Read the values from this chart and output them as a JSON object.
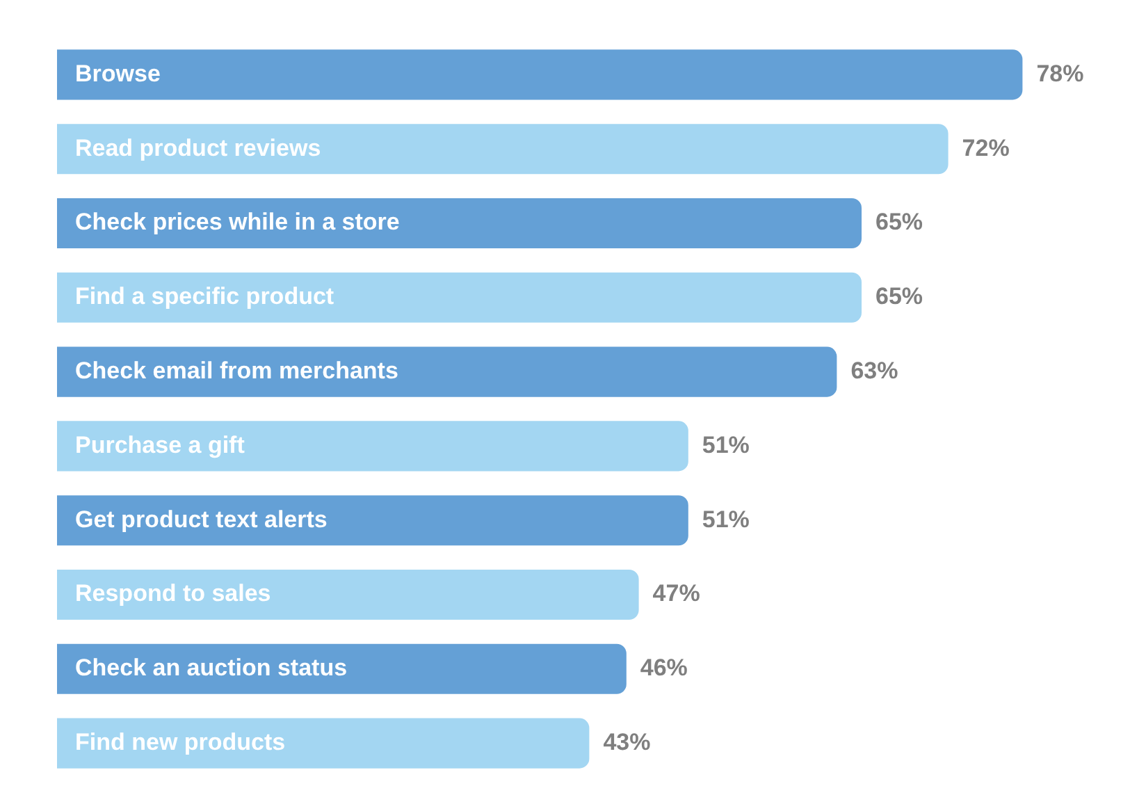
{
  "chart_data": {
    "type": "bar",
    "orientation": "horizontal",
    "categories": [
      "Browse",
      "Read product reviews",
      "Check prices while in a store",
      "Find a specific product",
      "Check email from merchants",
      "Purchase a gift",
      "Get product text alerts",
      "Respond to sales",
      "Check an auction status",
      "Find new products"
    ],
    "values": [
      78,
      72,
      65,
      65,
      63,
      51,
      51,
      47,
      46,
      43
    ],
    "value_labels": [
      "78%",
      "72%",
      "65%",
      "65%",
      "63%",
      "51%",
      "51%",
      "47%",
      "46%",
      "43%"
    ],
    "colors": [
      "#64a0d6",
      "#a3d6f2",
      "#64a0d6",
      "#a3d6f2",
      "#64a0d6",
      "#a3d6f2",
      "#64a0d6",
      "#a3d6f2",
      "#64a0d6",
      "#a3d6f2"
    ],
    "legend": false,
    "tick_labels": false
  }
}
